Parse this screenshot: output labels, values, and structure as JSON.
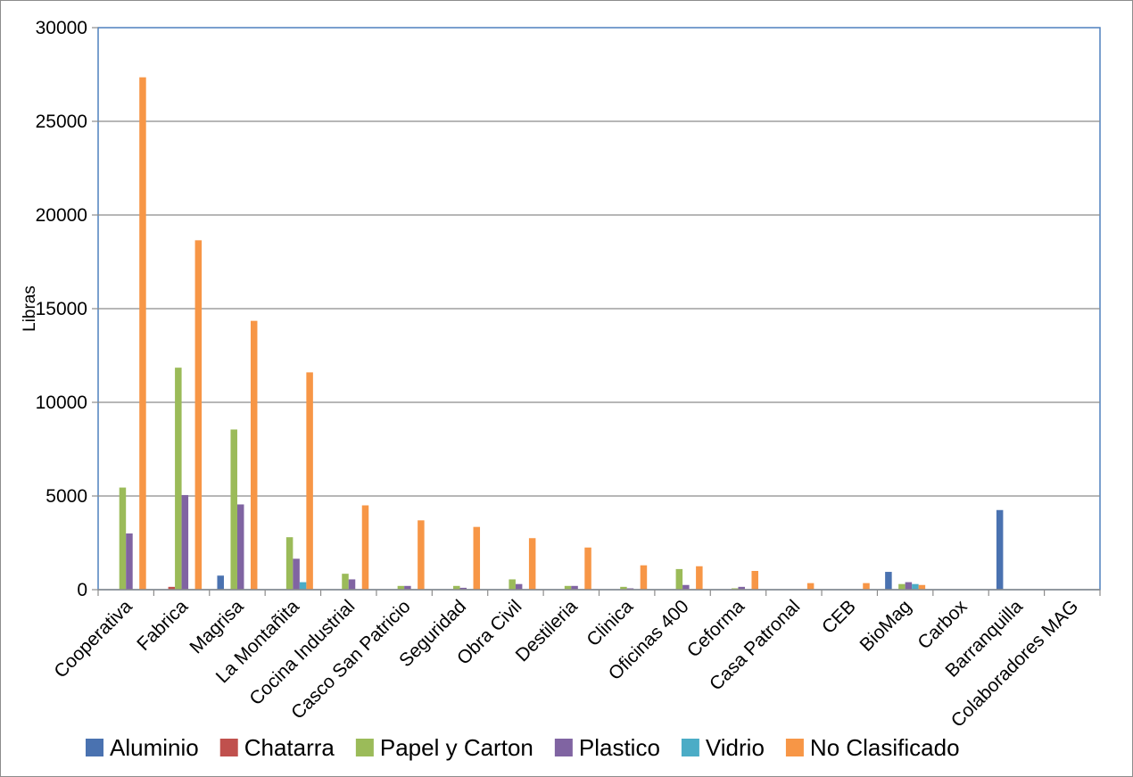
{
  "chart_data": {
    "type": "bar",
    "title": "",
    "xlabel": "",
    "ylabel": "Libras",
    "ylim": [
      0,
      30000
    ],
    "yticks": [
      0,
      5000,
      10000,
      15000,
      20000,
      25000,
      30000
    ],
    "grid": true,
    "legend_position": "bottom",
    "categories": [
      "Cooperativa",
      "Fabrica",
      "Magrisa",
      "La Montañita",
      "Cocina Industrial",
      "Casco San Patricio",
      "Seguridad",
      "Obra Civil",
      "Destileria",
      "Clinica",
      "Oficinas 400",
      "Ceforma",
      "Casa Patronal",
      "CEB",
      "BioMag",
      "Carbox",
      "Barranquilla",
      "Colaboradores MAG"
    ],
    "series": [
      {
        "name": "Aluminio",
        "color": "#4a72b0",
        "values": [
          0,
          0,
          750,
          0,
          0,
          0,
          0,
          0,
          0,
          0,
          0,
          0,
          0,
          0,
          950,
          0,
          4250,
          0
        ]
      },
      {
        "name": "Chatarra",
        "color": "#c0504d",
        "values": [
          0,
          150,
          0,
          0,
          0,
          0,
          0,
          0,
          0,
          0,
          0,
          0,
          0,
          0,
          0,
          0,
          0,
          0
        ]
      },
      {
        "name": "Papel y Carton",
        "color": "#9bbb59",
        "values": [
          5450,
          11850,
          8550,
          2800,
          850,
          200,
          200,
          550,
          200,
          150,
          1100,
          50,
          0,
          0,
          300,
          0,
          0,
          0
        ]
      },
      {
        "name": "Plastico",
        "color": "#8064a2",
        "values": [
          3000,
          5050,
          4550,
          1650,
          550,
          200,
          100,
          300,
          200,
          50,
          250,
          150,
          0,
          0,
          400,
          0,
          0,
          0
        ]
      },
      {
        "name": "Vidrio",
        "color": "#4bacc6",
        "values": [
          0,
          0,
          0,
          400,
          0,
          0,
          0,
          0,
          0,
          0,
          0,
          0,
          0,
          0,
          300,
          0,
          0,
          0
        ]
      },
      {
        "name": "No Clasificado",
        "color": "#f79646",
        "values": [
          27350,
          18650,
          14350,
          11600,
          4500,
          3700,
          3350,
          2750,
          2250,
          1300,
          1250,
          1000,
          350,
          350,
          250,
          0,
          0,
          0
        ]
      }
    ]
  }
}
